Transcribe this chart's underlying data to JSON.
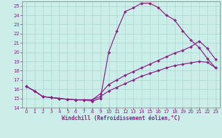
{
  "xlabel": "Windchill (Refroidissement éolien,°C)",
  "bg_color": "#cceee8",
  "grid_color": "#aad4ce",
  "line_color": "#882288",
  "xlim": [
    -0.5,
    23.5
  ],
  "ylim": [
    14,
    25.5
  ],
  "xticks": [
    0,
    1,
    2,
    3,
    4,
    5,
    6,
    7,
    8,
    9,
    10,
    11,
    12,
    13,
    14,
    15,
    16,
    17,
    18,
    19,
    20,
    21,
    22,
    23
  ],
  "yticks": [
    14,
    15,
    16,
    17,
    18,
    19,
    20,
    21,
    22,
    23,
    24,
    25
  ],
  "line1_x": [
    0,
    1,
    2,
    3,
    4,
    5,
    6,
    7,
    8,
    9,
    10,
    11,
    12,
    13,
    14,
    15,
    16,
    17,
    18,
    19,
    20,
    21,
    22,
    23
  ],
  "line1_y": [
    16.3,
    15.8,
    15.2,
    15.1,
    15.0,
    14.9,
    14.85,
    14.85,
    14.7,
    15.0,
    20.0,
    22.3,
    24.4,
    24.8,
    25.3,
    25.3,
    24.85,
    24.0,
    23.5,
    22.3,
    21.3,
    20.5,
    19.3,
    18.3
  ],
  "line2_x": [
    0,
    1,
    2,
    3,
    4,
    5,
    6,
    7,
    8,
    9,
    10,
    11,
    12,
    13,
    14,
    15,
    16,
    17,
    18,
    19,
    20,
    21,
    22,
    23
  ],
  "line2_y": [
    16.3,
    15.8,
    15.2,
    15.1,
    15.0,
    14.9,
    14.85,
    14.85,
    14.85,
    15.2,
    15.8,
    16.2,
    16.6,
    17.0,
    17.4,
    17.7,
    18.0,
    18.3,
    18.55,
    18.7,
    18.85,
    19.0,
    18.9,
    18.3
  ],
  "line3_x": [
    0,
    1,
    2,
    3,
    4,
    5,
    6,
    7,
    8,
    9,
    10,
    11,
    12,
    13,
    14,
    15,
    16,
    17,
    18,
    19,
    20,
    21,
    22,
    23
  ],
  "line3_y": [
    16.3,
    15.8,
    15.2,
    15.1,
    15.0,
    14.9,
    14.85,
    14.85,
    14.85,
    15.5,
    16.5,
    17.0,
    17.5,
    17.9,
    18.3,
    18.7,
    19.1,
    19.5,
    19.9,
    20.2,
    20.6,
    21.2,
    20.4,
    19.2
  ],
  "marker": "D",
  "markersize": 2.0,
  "linewidth": 0.9,
  "tick_fontsize": 5.0,
  "xlabel_fontsize": 5.5
}
